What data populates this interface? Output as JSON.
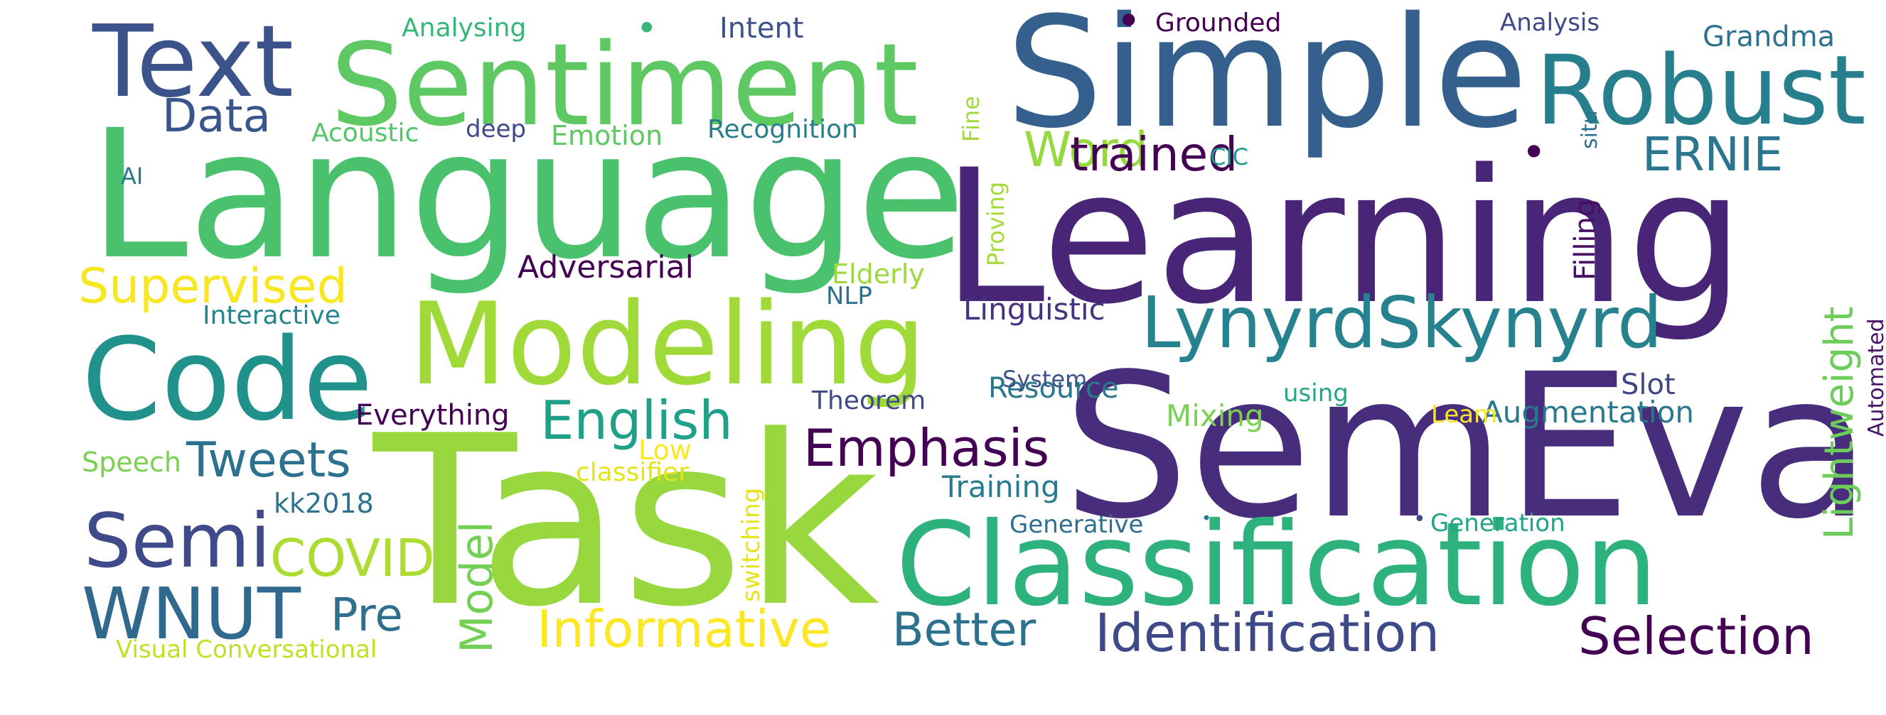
{
  "words": [
    {
      "text": "Task",
      "color": "#98d83e"
    },
    {
      "text": "Learning",
      "color": "#482576"
    },
    {
      "text": "Language",
      "color": "#4ac16d"
    },
    {
      "text": "SemEval",
      "color": "#472d7b"
    },
    {
      "text": "Simple",
      "color": "#355f8d"
    },
    {
      "text": "Classification",
      "color": "#2db27d"
    },
    {
      "text": "Modeling",
      "color": "#a0da39"
    },
    {
      "text": "Sentiment",
      "color": "#5ec962"
    },
    {
      "text": "Code",
      "color": "#21918c"
    },
    {
      "text": "Text",
      "color": "#3b528b"
    },
    {
      "text": "Robust",
      "color": "#277f8e"
    },
    {
      "text": "LynyrdSkynyrd",
      "color": "#26828e"
    },
    {
      "text": "Informative",
      "color": "#fde725"
    },
    {
      "text": "Identification",
      "color": "#3e4989"
    },
    {
      "text": "Selection",
      "color": "#440154"
    },
    {
      "text": "English",
      "color": "#1fa088"
    },
    {
      "text": "Emphasis",
      "color": "#440154"
    },
    {
      "text": "Tweets",
      "color": "#2c728e"
    },
    {
      "text": "Semi",
      "color": "#3e4a89"
    },
    {
      "text": "WNUT",
      "color": "#31688e"
    },
    {
      "text": "COVID",
      "color": "#addc30"
    },
    {
      "text": "Better",
      "color": "#2c728e"
    },
    {
      "text": "Supervised",
      "color": "#f8e621"
    },
    {
      "text": "Word",
      "color": "#95d840"
    },
    {
      "text": "trained",
      "color": "#440154"
    },
    {
      "text": "ERNIE",
      "color": "#2b758e"
    },
    {
      "text": "Data",
      "color": "#39568c"
    },
    {
      "text": "Pre",
      "color": "#2e6f8e"
    },
    {
      "text": "Model",
      "color": "#73d055"
    },
    {
      "text": "Lightweight",
      "color": "#6ccd5a"
    },
    {
      "text": "Augmentation",
      "color": "#2a788e"
    },
    {
      "text": "Adversarial",
      "color": "#440154"
    },
    {
      "text": "Linguistic",
      "color": "#46327e"
    },
    {
      "text": "Resource",
      "color": "#2a788e"
    },
    {
      "text": "Everything",
      "color": "#440154"
    },
    {
      "text": "Training",
      "color": "#287c8e"
    },
    {
      "text": "Mixing",
      "color": "#7ad151"
    },
    {
      "text": "Slot",
      "color": "#3f4788"
    },
    {
      "text": "Filling",
      "color": "#471063"
    },
    {
      "text": "Elderly",
      "color": "#9bd93c"
    },
    {
      "text": "Emotion",
      "color": "#5ec962"
    },
    {
      "text": "Acoustic",
      "color": "#54c568"
    },
    {
      "text": "Recognition",
      "color": "#277f8e"
    },
    {
      "text": "Intent",
      "color": "#3b528b"
    },
    {
      "text": "Analysing",
      "color": "#35b779"
    },
    {
      "text": "Grounded",
      "color": "#440154"
    },
    {
      "text": "Analysis",
      "color": "#3f4889"
    },
    {
      "text": "Grandma",
      "color": "#2c728e"
    },
    {
      "text": "Interactive",
      "color": "#25858e"
    },
    {
      "text": "Speech",
      "color": "#7ad151"
    },
    {
      "text": "kk2018",
      "color": "#2c728e"
    },
    {
      "text": "Low",
      "color": "#fde725"
    },
    {
      "text": "classifier",
      "color": "#e5e419"
    },
    {
      "text": "switching",
      "color": "#e5e419"
    },
    {
      "text": "Theorem",
      "color": "#3e4989"
    },
    {
      "text": "System",
      "color": "#3b528b"
    },
    {
      "text": "using",
      "color": "#22a884"
    },
    {
      "text": "Generative",
      "color": "#2e6e8e"
    },
    {
      "text": "Generation",
      "color": "#20a486"
    },
    {
      "text": "Leam",
      "color": "#fde725"
    },
    {
      "text": "Visual Conversational",
      "color": "#c2df23"
    },
    {
      "text": "NLP",
      "color": "#2c728e"
    },
    {
      "text": "CIC",
      "color": "#1f9e89"
    },
    {
      "text": "AI",
      "color": "#2a788e"
    },
    {
      "text": "deep",
      "color": "#3e4989"
    },
    {
      "text": "Fine",
      "color": "#9fda3a"
    },
    {
      "text": "Proving",
      "color": "#a5db36"
    },
    {
      "text": "situ",
      "color": "#2d708e"
    },
    {
      "text": "Automated",
      "color": "#481467"
    },
    {
      "text": "•",
      "color": "#440154"
    },
    {
      "text": "•",
      "color": "#440154"
    },
    {
      "text": "•",
      "color": "#35b779"
    },
    {
      "text": "•",
      "color": "#3e4989"
    },
    {
      "text": "•",
      "color": "#2a788e"
    }
  ]
}
